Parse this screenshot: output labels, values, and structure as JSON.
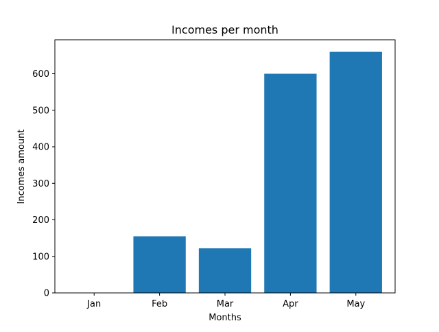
{
  "chart_data": {
    "type": "bar",
    "title": "Incomes per month",
    "xlabel": "Months",
    "ylabel": "Incomes amount",
    "categories": [
      "Jan",
      "Feb",
      "Mar",
      "Apr",
      "May"
    ],
    "values": [
      0,
      155,
      122,
      600,
      660
    ],
    "ylim": [
      0,
      693
    ],
    "yticks": [
      0,
      100,
      200,
      300,
      400,
      500,
      600
    ],
    "bar_color": "#1f77b4",
    "grid": false,
    "legend": "none"
  }
}
